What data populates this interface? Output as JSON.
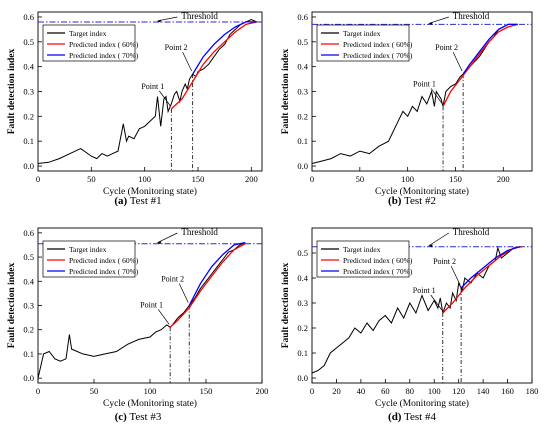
{
  "chart_data": [
    {
      "type": "line",
      "caption_letter": "(a)",
      "caption_text": " Test #1",
      "xlabel": "Cycle (Monitoring state)",
      "ylabel": "Fault detection index",
      "xlim": [
        0,
        210
      ],
      "ylim": [
        -0.02,
        0.62
      ],
      "xticks": [
        0,
        50,
        100,
        150,
        200
      ],
      "yticks": [
        0.0,
        0.1,
        0.2,
        0.3,
        0.4,
        0.5,
        0.6
      ],
      "threshold": 0.58,
      "threshold_label": "Threshold",
      "point1": {
        "label": "Point 1",
        "x": 125,
        "y": 0.23
      },
      "point2": {
        "label": "Point 2",
        "x": 145,
        "y": 0.37
      },
      "legend": [
        "Target index",
        "Predicted index ( 60%)",
        "Predicted index ( 70%)"
      ],
      "series": [
        {
          "name": "Target index",
          "color": "#000000",
          "x": [
            0,
            10,
            20,
            30,
            40,
            50,
            55,
            60,
            65,
            70,
            75,
            80,
            83,
            85,
            90,
            95,
            100,
            105,
            110,
            112,
            115,
            118,
            120,
            122,
            125,
            128,
            130,
            133,
            135,
            138,
            140,
            142,
            145,
            148,
            150,
            155,
            160,
            165,
            170,
            175,
            180,
            185,
            190,
            195,
            200,
            205
          ],
          "y": [
            0.01,
            0.015,
            0.03,
            0.05,
            0.07,
            0.04,
            0.03,
            0.05,
            0.04,
            0.05,
            0.06,
            0.17,
            0.1,
            0.12,
            0.11,
            0.15,
            0.16,
            0.18,
            0.2,
            0.28,
            0.16,
            0.27,
            0.28,
            0.22,
            0.25,
            0.29,
            0.3,
            0.26,
            0.3,
            0.33,
            0.31,
            0.35,
            0.37,
            0.36,
            0.38,
            0.39,
            0.41,
            0.44,
            0.47,
            0.49,
            0.53,
            0.55,
            0.57,
            0.58,
            0.59,
            0.58
          ]
        },
        {
          "name": "Predicted index ( 60%)",
          "color": "#ff0000",
          "x": [
            125,
            135,
            145,
            155,
            165,
            175,
            185,
            195,
            205
          ],
          "y": [
            0.23,
            0.27,
            0.34,
            0.41,
            0.46,
            0.5,
            0.54,
            0.57,
            0.58
          ]
        },
        {
          "name": "Predicted index ( 70%)",
          "color": "#0000ff",
          "x": [
            145,
            155,
            165,
            175,
            185,
            195,
            205
          ],
          "y": [
            0.37,
            0.44,
            0.49,
            0.53,
            0.56,
            0.58,
            0.58
          ]
        }
      ]
    },
    {
      "type": "line",
      "caption_letter": "(b)",
      "caption_text": " Test #2",
      "xlabel": "Cycle (Monitoring state)",
      "ylabel": "Fault detection index",
      "xlim": [
        0,
        230
      ],
      "ylim": [
        -0.02,
        0.62
      ],
      "xticks": [
        0,
        50,
        100,
        150,
        200
      ],
      "yticks": [
        0.0,
        0.1,
        0.2,
        0.3,
        0.4,
        0.5,
        0.6
      ],
      "threshold": 0.57,
      "threshold_label": "Threshold",
      "point1": {
        "label": "Point 1",
        "x": 137,
        "y": 0.24
      },
      "point2": {
        "label": "Point 2",
        "x": 158,
        "y": 0.37
      },
      "legend": [
        "Target index",
        "Predicted index ( 60%)",
        "Predicted index ( 70%)"
      ],
      "series": [
        {
          "name": "Target index",
          "color": "#000000",
          "x": [
            0,
            10,
            20,
            30,
            40,
            50,
            60,
            70,
            80,
            90,
            95,
            100,
            105,
            110,
            115,
            120,
            125,
            128,
            130,
            135,
            137,
            140,
            145,
            150,
            155,
            158,
            160,
            165,
            170,
            175,
            180,
            185,
            190,
            195,
            200,
            205,
            210,
            215
          ],
          "y": [
            0.01,
            0.02,
            0.03,
            0.05,
            0.04,
            0.06,
            0.05,
            0.08,
            0.1,
            0.18,
            0.22,
            0.2,
            0.24,
            0.22,
            0.28,
            0.25,
            0.3,
            0.24,
            0.3,
            0.27,
            0.24,
            0.3,
            0.32,
            0.33,
            0.36,
            0.37,
            0.38,
            0.4,
            0.42,
            0.44,
            0.47,
            0.5,
            0.52,
            0.55,
            0.56,
            0.57,
            0.57,
            0.57
          ]
        },
        {
          "name": "Predicted index ( 60%)",
          "color": "#ff0000",
          "x": [
            137,
            145,
            155,
            165,
            175,
            185,
            195,
            205,
            215
          ],
          "y": [
            0.24,
            0.3,
            0.35,
            0.4,
            0.45,
            0.5,
            0.54,
            0.56,
            0.57
          ]
        },
        {
          "name": "Predicted index ( 70%)",
          "color": "#0000ff",
          "x": [
            158,
            165,
            175,
            185,
            195,
            205,
            215
          ],
          "y": [
            0.37,
            0.41,
            0.46,
            0.51,
            0.55,
            0.57,
            0.57
          ]
        }
      ]
    },
    {
      "type": "line",
      "caption_letter": "(c)",
      "caption_text": " Test #3",
      "xlabel": "Cycle (Monitoring state)",
      "ylabel": "Fault detection index",
      "xlim": [
        0,
        200
      ],
      "ylim": [
        -0.02,
        0.62
      ],
      "xticks": [
        0,
        50,
        100,
        150,
        200
      ],
      "yticks": [
        0.0,
        0.1,
        0.2,
        0.3,
        0.4,
        0.5,
        0.6
      ],
      "threshold": 0.555,
      "threshold_label": "Threshold",
      "point1": {
        "label": "Point 1",
        "x": 118,
        "y": 0.21
      },
      "point2": {
        "label": "Point 2",
        "x": 135,
        "y": 0.3
      },
      "legend": [
        "Target index",
        "Predicted index ( 60%)",
        "Predicted index ( 70%)"
      ],
      "series": [
        {
          "name": "Target index",
          "color": "#000000",
          "x": [
            0,
            5,
            10,
            15,
            20,
            25,
            28,
            30,
            35,
            40,
            50,
            60,
            70,
            80,
            90,
            100,
            105,
            110,
            115,
            118,
            120,
            125,
            130,
            135,
            140,
            145,
            150,
            155,
            160,
            165,
            170,
            175,
            180,
            185
          ],
          "y": [
            0.0,
            0.1,
            0.11,
            0.08,
            0.07,
            0.08,
            0.18,
            0.12,
            0.11,
            0.1,
            0.09,
            0.1,
            0.11,
            0.14,
            0.16,
            0.17,
            0.19,
            0.2,
            0.22,
            0.21,
            0.22,
            0.25,
            0.27,
            0.3,
            0.33,
            0.37,
            0.4,
            0.43,
            0.46,
            0.49,
            0.52,
            0.53,
            0.55,
            0.56
          ]
        },
        {
          "name": "Predicted index ( 60%)",
          "color": "#ff0000",
          "x": [
            118,
            125,
            135,
            145,
            155,
            165,
            175,
            185
          ],
          "y": [
            0.21,
            0.24,
            0.29,
            0.36,
            0.42,
            0.48,
            0.53,
            0.555
          ]
        },
        {
          "name": "Predicted index ( 70%)",
          "color": "#0000ff",
          "x": [
            135,
            145,
            155,
            165,
            175,
            185
          ],
          "y": [
            0.3,
            0.39,
            0.46,
            0.51,
            0.55,
            0.56
          ]
        }
      ]
    },
    {
      "type": "line",
      "caption_letter": "(d)",
      "caption_text": " Test #4",
      "xlabel": "Cycle (Monitoring state)",
      "ylabel": "Fault detection index",
      "xlim": [
        0,
        180
      ],
      "ylim": [
        -0.02,
        0.6
      ],
      "xticks": [
        0,
        20,
        40,
        60,
        80,
        100,
        120,
        140,
        160,
        180
      ],
      "yticks": [
        0.0,
        0.1,
        0.2,
        0.3,
        0.4,
        0.5
      ],
      "threshold": 0.525,
      "threshold_label": "Threshold",
      "point1": {
        "label": "Point 1",
        "x": 107,
        "y": 0.26
      },
      "point2": {
        "label": "Point 2",
        "x": 122,
        "y": 0.36
      },
      "legend": [
        "Target index",
        "Predicted index ( 60%)",
        "Predicted index ( 70%)"
      ],
      "series": [
        {
          "name": "Target index",
          "color": "#000000",
          "x": [
            0,
            5,
            10,
            15,
            20,
            25,
            30,
            35,
            40,
            45,
            50,
            55,
            60,
            65,
            70,
            75,
            80,
            85,
            90,
            95,
            100,
            103,
            105,
            107,
            110,
            113,
            115,
            118,
            120,
            123,
            125,
            130,
            135,
            140,
            145,
            150,
            152,
            155,
            160,
            165,
            170
          ],
          "y": [
            0.02,
            0.03,
            0.05,
            0.1,
            0.12,
            0.14,
            0.16,
            0.2,
            0.18,
            0.22,
            0.19,
            0.23,
            0.25,
            0.22,
            0.28,
            0.24,
            0.3,
            0.26,
            0.33,
            0.27,
            0.31,
            0.28,
            0.32,
            0.26,
            0.3,
            0.28,
            0.34,
            0.31,
            0.38,
            0.35,
            0.4,
            0.38,
            0.42,
            0.4,
            0.45,
            0.47,
            0.52,
            0.48,
            0.5,
            0.52,
            0.525
          ]
        },
        {
          "name": "Predicted index ( 60%)",
          "color": "#ff0000",
          "x": [
            107,
            115,
            125,
            135,
            145,
            155,
            165,
            172
          ],
          "y": [
            0.26,
            0.3,
            0.36,
            0.41,
            0.45,
            0.49,
            0.52,
            0.525
          ]
        },
        {
          "name": "Predicted index ( 70%)",
          "color": "#0000ff",
          "x": [
            122,
            130,
            140,
            150,
            160,
            170
          ],
          "y": [
            0.36,
            0.4,
            0.44,
            0.48,
            0.51,
            0.525
          ]
        }
      ]
    }
  ]
}
